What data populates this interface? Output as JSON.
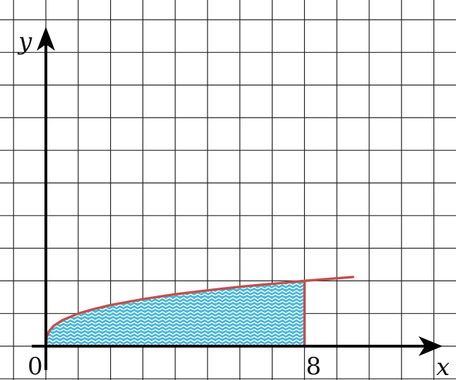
{
  "chart_data": {
    "type": "area",
    "title": "",
    "xlabel": "x",
    "ylabel": "y",
    "x_tick_labels": [
      {
        "x": 0,
        "label": "0"
      },
      {
        "x": 8,
        "label": "8"
      }
    ],
    "xlim": [
      -1,
      12.5
    ],
    "ylim": [
      -1,
      10.5
    ],
    "grid": true,
    "curve": {
      "x": [
        0,
        0.02,
        0.1,
        0.25,
        0.5,
        1,
        1.5,
        2,
        3,
        4,
        5,
        6,
        7,
        8,
        9,
        9.5
      ],
      "y": [
        0,
        0.27,
        0.46,
        0.63,
        0.79,
        1,
        1.14,
        1.26,
        1.44,
        1.59,
        1.71,
        1.82,
        1.91,
        2,
        2.08,
        2.12
      ]
    },
    "shaded_region": {
      "x_from": 0,
      "x_to": 8
    },
    "colors": {
      "curve": "#c0504d",
      "fill": "#4bb8d8",
      "hatch": "#ffffff",
      "grid": "#222222",
      "axis": "#000000"
    }
  }
}
